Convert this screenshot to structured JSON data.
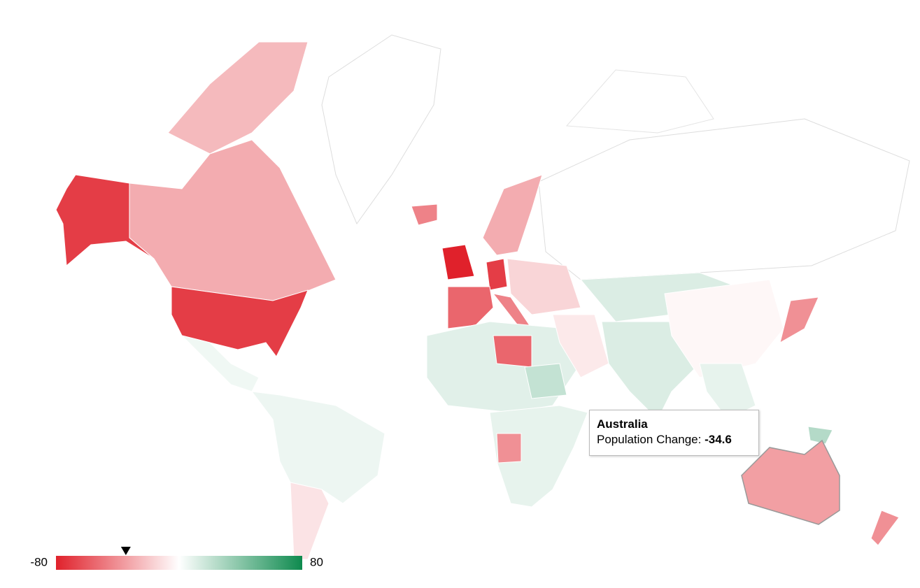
{
  "chart_data": {
    "type": "geo",
    "colorbar": {
      "min": -80,
      "max": 80,
      "colors": [
        "#e0212b",
        "#ffffff",
        "#0e8a4e"
      ]
    },
    "tooltip": {
      "region": "Australia",
      "label": "Population Change:",
      "value": -34.6
    },
    "values": [
      -70,
      -30,
      -25,
      -70,
      5,
      6,
      -10,
      -45,
      -80,
      -30,
      -70,
      -55,
      -45,
      -15,
      10,
      -55,
      20,
      8,
      -40,
      -8,
      12,
      12,
      -3,
      8,
      -40,
      25,
      -40
    ]
  }
}
